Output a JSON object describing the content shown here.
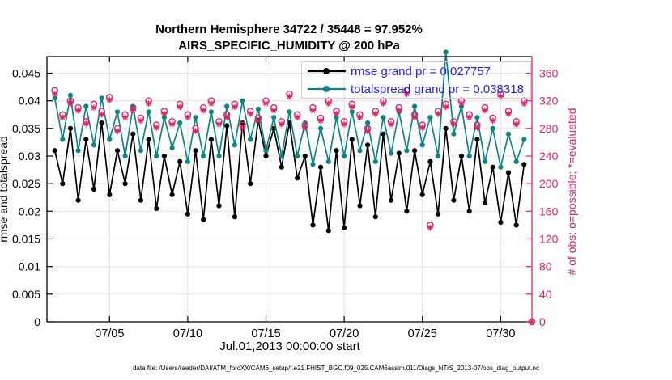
{
  "title": {
    "line1": "Northern Hemisphere 34722 / 35448 = 97.952%",
    "line2": "AIRS_SPECIFIC_HUMIDITY @ 200 hPa"
  },
  "legend": {
    "items": [
      {
        "label": "rmse grand pr = 0.027757",
        "color": "#000000",
        "marker": "filled-circle"
      },
      {
        "label": "totalspread grand pr = 0.038318",
        "color": "#0e8585",
        "marker": "filled-circle"
      }
    ]
  },
  "footer": "data file: /Users/raeder/DAI/ATM_forcXX/CAM6_setup/f.e21.FHIST_BGC.f09_025.CAM6assim.011/Diags_NTrS_2013-07/obs_diag_output.nc",
  "colors": {
    "rmse_black": "#000000",
    "totalspread_teal": "#0e8585",
    "obs_pink": "#dd2268",
    "legend_text_blue": "#2323e6",
    "legend_border": "#f0bcd2",
    "grid_horizontal": "#f7d9e6",
    "grid_vertical": "#e3dde0",
    "axis_black": "#000000"
  },
  "chart_data": {
    "type": "line",
    "title": "Northern Hemisphere 34722 / 35448 = 97.952% | AIRS_SPECIFIC_HUMIDITY @ 200 hPa",
    "xlabel": "Jul.01,2013 00:00:00 start",
    "x_range": [
      0,
      31
    ],
    "x_ticks": {
      "days": [
        4,
        9,
        14,
        19,
        24,
        29
      ],
      "labels": [
        "07/05",
        "07/10",
        "07/15",
        "07/20",
        "07/25",
        "07/30"
      ]
    },
    "left_axis": {
      "label": "rmse and totalspread",
      "range": [
        0,
        0.048
      ],
      "tick_values": [
        0,
        0.005,
        0.01,
        0.015,
        0.02,
        0.025,
        0.03,
        0.035,
        0.04,
        0.045
      ],
      "tick_labels": [
        "0",
        "0.005",
        "0.01",
        "0.015",
        "0.02",
        "0.025",
        "0.03",
        "0.035",
        "0.04",
        "0.045"
      ]
    },
    "right_axis": {
      "label": "# of obs: o=possible; *=evaluated",
      "range": [
        0,
        384
      ],
      "tick_values": [
        0,
        40,
        80,
        120,
        160,
        200,
        240,
        280,
        320,
        360
      ],
      "tick_labels": [
        "0",
        "40",
        "80",
        "120",
        "160",
        "200",
        "240",
        "280",
        "320",
        "360"
      ]
    },
    "x_days": [
      0.5,
      1,
      1.5,
      2,
      2.5,
      3,
      3.5,
      4,
      4.5,
      5,
      5.5,
      6,
      6.5,
      7,
      7.5,
      8,
      8.5,
      9,
      9.5,
      10,
      10.5,
      11,
      11.5,
      12,
      12.5,
      13,
      13.5,
      14,
      14.5,
      15,
      15.5,
      16,
      16.5,
      17,
      17.5,
      18,
      18.5,
      19,
      19.5,
      20,
      20.5,
      21,
      21.5,
      22,
      22.5,
      23,
      23.5,
      24,
      24.5,
      25,
      25.5,
      26,
      26.5,
      27,
      27.5,
      28,
      28.5,
      29,
      29.5,
      30,
      30.5,
      31
    ],
    "series": [
      {
        "name": "rmse",
        "axis": "left",
        "marker": "filled-circle",
        "color": "#000000",
        "grand_mean": 0.027757,
        "values": [
          0.031,
          0.025,
          0.035,
          0.022,
          0.033,
          0.024,
          0.036,
          0.023,
          0.031,
          0.025,
          0.034,
          0.022,
          0.033,
          0.0205,
          0.03,
          0.023,
          0.029,
          0.0195,
          0.031,
          0.0185,
          0.033,
          0.021,
          0.0355,
          0.019,
          0.036,
          0.025,
          0.0365,
          0.03,
          0.035,
          0.028,
          0.036,
          0.026,
          0.03,
          0.0175,
          0.028,
          0.0165,
          0.031,
          0.017,
          0.033,
          0.021,
          0.032,
          0.019,
          0.034,
          0.022,
          0.0305,
          0.02,
          0.031,
          0.023,
          0.029,
          0.0195,
          0.035,
          0.022,
          0.03,
          0.02,
          0.033,
          0.0215,
          0.028,
          0.018,
          0.027,
          0.0175,
          0.0285,
          null
        ]
      },
      {
        "name": "totalspread",
        "axis": "left",
        "marker": "filled-circle",
        "color": "#0e8585",
        "grand_mean": 0.038318,
        "values": [
          0.0405,
          0.033,
          0.041,
          0.031,
          0.039,
          0.032,
          0.0405,
          0.033,
          0.038,
          0.03,
          0.039,
          0.031,
          0.038,
          0.03,
          0.037,
          0.0315,
          0.036,
          0.029,
          0.037,
          0.03,
          0.038,
          0.03,
          0.039,
          0.032,
          0.04,
          0.033,
          0.0385,
          0.031,
          0.037,
          0.03,
          0.038,
          0.03,
          0.036,
          0.0285,
          0.035,
          0.029,
          0.037,
          0.03,
          0.038,
          0.031,
          0.036,
          0.029,
          0.037,
          0.0305,
          0.038,
          0.031,
          0.039,
          0.032,
          0.037,
          0.03,
          0.0488,
          0.034,
          0.039,
          0.03,
          0.037,
          0.029,
          0.035,
          0.028,
          0.034,
          0.029,
          0.033,
          null
        ]
      },
      {
        "name": "obs-possible",
        "axis": "right",
        "marker": "open-circle",
        "color": "#dd2268",
        "values": [
          335,
          300,
          320,
          310,
          290,
          315,
          305,
          325,
          280,
          300,
          310,
          295,
          320,
          285,
          305,
          290,
          315,
          300,
          280,
          310,
          320,
          290,
          300,
          315,
          285,
          305,
          295,
          320,
          310,
          290,
          330,
          300,
          285,
          310,
          295,
          320,
          305,
          290,
          315,
          300,
          280,
          305,
          320,
          290,
          310,
          335,
          300,
          285,
          140,
          305,
          315,
          290,
          320,
          300,
          285,
          310,
          295,
          330,
          305,
          290,
          320,
          0
        ]
      },
      {
        "name": "obs-evaluated",
        "axis": "right",
        "marker": "asterisk",
        "color": "#dd2268",
        "values": [
          330,
          296,
          316,
          306,
          287,
          310,
          300,
          321,
          276,
          296,
          306,
          291,
          316,
          281,
          301,
          286,
          311,
          296,
          276,
          306,
          316,
          286,
          296,
          311,
          281,
          301,
          291,
          316,
          306,
          286,
          326,
          296,
          281,
          306,
          291,
          316,
          301,
          286,
          311,
          296,
          276,
          301,
          316,
          286,
          306,
          330,
          296,
          281,
          136,
          301,
          311,
          286,
          316,
          296,
          281,
          306,
          291,
          326,
          301,
          286,
          316,
          0
        ]
      }
    ],
    "grid": true,
    "legend_position": "northeast"
  }
}
